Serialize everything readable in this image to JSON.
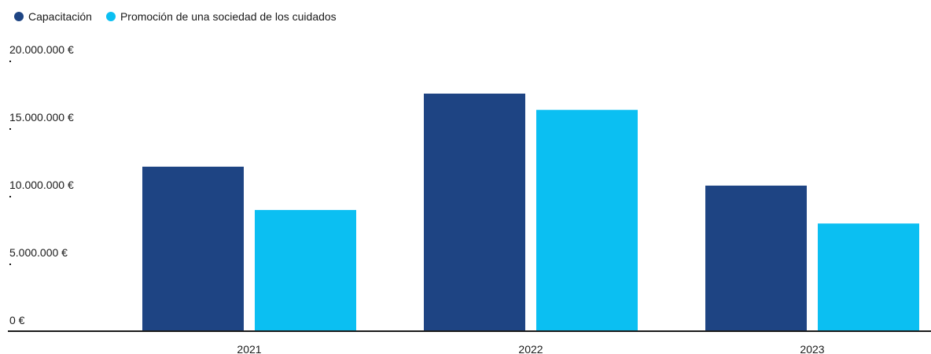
{
  "chart_data": {
    "type": "bar",
    "categories": [
      "2021",
      "2022",
      "2023"
    ],
    "series": [
      {
        "name": "Capacitación",
        "color": "#1e4483",
        "values": [
          12100000,
          17500000,
          10700000
        ]
      },
      {
        "name": "Promoción de una sociedad de los cuidados",
        "color": "#0bbff2",
        "values": [
          8900000,
          16300000,
          7900000
        ]
      }
    ],
    "yticks": [
      0,
      5000000,
      10000000,
      15000000,
      20000000
    ],
    "ytick_labels": [
      "0 €",
      "5.000.000 €",
      "10.000.000 €",
      "15.000.000 €",
      "20.000.000 €"
    ],
    "ylim": [
      0,
      20000000
    ],
    "legend_position": "top-left",
    "grid": false
  }
}
